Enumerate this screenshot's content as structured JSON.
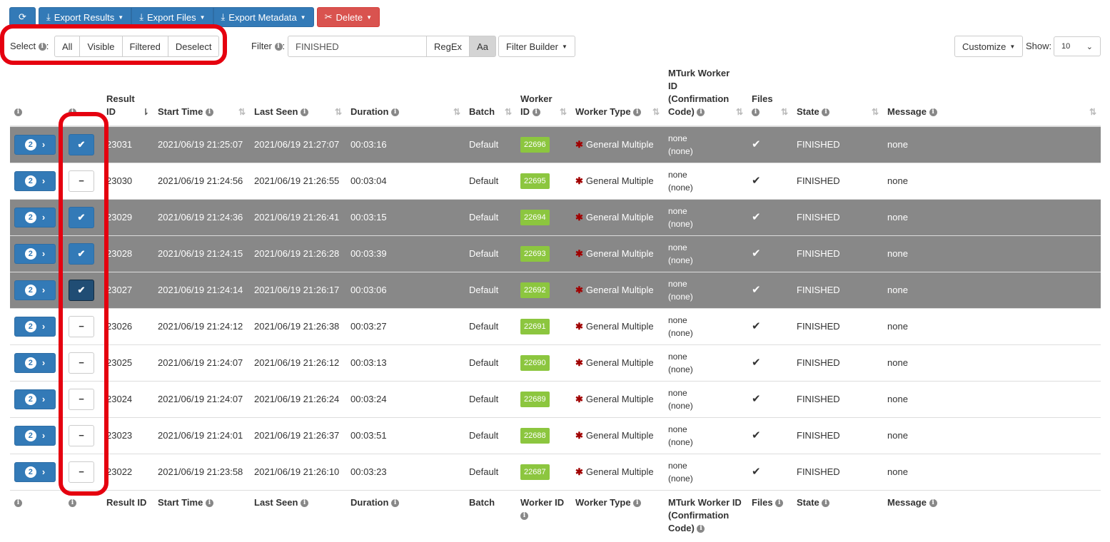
{
  "toolbar": {
    "export_results": "Export Results",
    "export_files": "Export Files",
    "export_metadata": "Export Metadata",
    "delete": "Delete"
  },
  "select": {
    "label": "Select",
    "all": "All",
    "visible": "Visible",
    "filtered": "Filtered",
    "deselect": "Deselect"
  },
  "filter": {
    "label": "Filter",
    "value": "FINISHED",
    "regex": "RegEx",
    "case": "Aa",
    "builder": "Filter Builder"
  },
  "customize": "Customize",
  "show": {
    "label": "Show:",
    "value": "10"
  },
  "columns": {
    "result_id_top": "Result",
    "result_id_bottom": "ID",
    "start_time": "Start Time",
    "last_seen": "Last Seen",
    "duration": "Duration",
    "batch": "Batch",
    "worker_id_top": "Worker",
    "worker_id_bottom": "ID",
    "worker_type": "Worker Type",
    "mturk_1": "MTurk Worker",
    "mturk_2": "ID",
    "mturk_3": "(Confirmation",
    "mturk_4": "Code)",
    "files": "Files",
    "state": "State",
    "message": "Message"
  },
  "footer": {
    "result_id": "Result ID",
    "start_time": "Start Time",
    "last_seen": "Last Seen",
    "duration": "Duration",
    "batch": "Batch",
    "worker_id": "Worker ID",
    "worker_type": "Worker Type",
    "mturk_1": "MTurk Worker ID",
    "mturk_2": "(Confirmation",
    "mturk_3": "Code)",
    "files": "Files",
    "state": "State",
    "message": "Message"
  },
  "rows": [
    {
      "badge": "2",
      "selected": true,
      "dark": false,
      "id": "23031",
      "start": "2021/06/19 21:25:07",
      "last": "2021/06/19 21:27:07",
      "duration": "00:03:16",
      "batch": "Default",
      "worker": "22696",
      "type": "General Multiple",
      "mturk1": "none",
      "mturk2": "(none)",
      "files": "✔",
      "state": "FINISHED",
      "message": "none"
    },
    {
      "badge": "2",
      "selected": false,
      "dark": false,
      "id": "23030",
      "start": "2021/06/19 21:24:56",
      "last": "2021/06/19 21:26:55",
      "duration": "00:03:04",
      "batch": "Default",
      "worker": "22695",
      "type": "General Multiple",
      "mturk1": "none",
      "mturk2": "(none)",
      "files": "✔",
      "state": "FINISHED",
      "message": "none"
    },
    {
      "badge": "2",
      "selected": true,
      "dark": false,
      "id": "23029",
      "start": "2021/06/19 21:24:36",
      "last": "2021/06/19 21:26:41",
      "duration": "00:03:15",
      "batch": "Default",
      "worker": "22694",
      "type": "General Multiple",
      "mturk1": "none",
      "mturk2": "(none)",
      "files": "✔",
      "state": "FINISHED",
      "message": "none"
    },
    {
      "badge": "2",
      "selected": true,
      "dark": false,
      "id": "23028",
      "start": "2021/06/19 21:24:15",
      "last": "2021/06/19 21:26:28",
      "duration": "00:03:39",
      "batch": "Default",
      "worker": "22693",
      "type": "General Multiple",
      "mturk1": "none",
      "mturk2": "(none)",
      "files": "✔",
      "state": "FINISHED",
      "message": "none"
    },
    {
      "badge": "2",
      "selected": true,
      "dark": true,
      "id": "23027",
      "start": "2021/06/19 21:24:14",
      "last": "2021/06/19 21:26:17",
      "duration": "00:03:06",
      "batch": "Default",
      "worker": "22692",
      "type": "General Multiple",
      "mturk1": "none",
      "mturk2": "(none)",
      "files": "✔",
      "state": "FINISHED",
      "message": "none"
    },
    {
      "badge": "2",
      "selected": false,
      "dark": false,
      "id": "23026",
      "start": "2021/06/19 21:24:12",
      "last": "2021/06/19 21:26:38",
      "duration": "00:03:27",
      "batch": "Default",
      "worker": "22691",
      "type": "General Multiple",
      "mturk1": "none",
      "mturk2": "(none)",
      "files": "✔",
      "state": "FINISHED",
      "message": "none"
    },
    {
      "badge": "2",
      "selected": false,
      "dark": false,
      "id": "23025",
      "start": "2021/06/19 21:24:07",
      "last": "2021/06/19 21:26:12",
      "duration": "00:03:13",
      "batch": "Default",
      "worker": "22690",
      "type": "General Multiple",
      "mturk1": "none",
      "mturk2": "(none)",
      "files": "✔",
      "state": "FINISHED",
      "message": "none"
    },
    {
      "badge": "2",
      "selected": false,
      "dark": false,
      "id": "23024",
      "start": "2021/06/19 21:24:07",
      "last": "2021/06/19 21:26:24",
      "duration": "00:03:24",
      "batch": "Default",
      "worker": "22689",
      "type": "General Multiple",
      "mturk1": "none",
      "mturk2": "(none)",
      "files": "✔",
      "state": "FINISHED",
      "message": "none"
    },
    {
      "badge": "2",
      "selected": false,
      "dark": false,
      "id": "23023",
      "start": "2021/06/19 21:24:01",
      "last": "2021/06/19 21:26:37",
      "duration": "00:03:51",
      "batch": "Default",
      "worker": "22688",
      "type": "General Multiple",
      "mturk1": "none",
      "mturk2": "(none)",
      "files": "✔",
      "state": "FINISHED",
      "message": "none"
    },
    {
      "badge": "2",
      "selected": false,
      "dark": false,
      "id": "23022",
      "start": "2021/06/19 21:23:58",
      "last": "2021/06/19 21:26:10",
      "duration": "00:03:23",
      "batch": "Default",
      "worker": "22687",
      "type": "General Multiple",
      "mturk1": "none",
      "mturk2": "(none)",
      "files": "✔",
      "state": "FINISHED",
      "message": "none"
    }
  ]
}
